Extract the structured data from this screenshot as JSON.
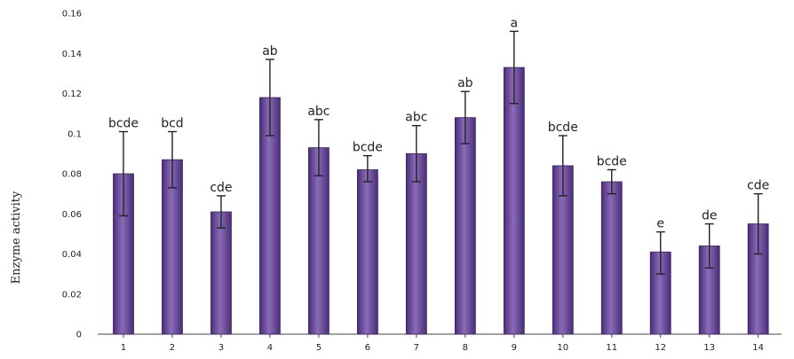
{
  "chart_data": {
    "type": "bar",
    "title": "",
    "xlabel": "",
    "ylabel": "Enzyme activity",
    "ylim": [
      0,
      0.16
    ],
    "yticks": [
      "0",
      "0.02",
      "0.04",
      "0.06",
      "0.08",
      "0.1",
      "0.12",
      "0.14",
      "0.16"
    ],
    "categories": [
      "1",
      "2",
      "3",
      "4",
      "5",
      "6",
      "7",
      "8",
      "9",
      "10",
      "11",
      "12",
      "13",
      "14"
    ],
    "values": [
      0.08,
      0.087,
      0.061,
      0.118,
      0.093,
      0.082,
      0.09,
      0.108,
      0.133,
      0.084,
      0.076,
      0.041,
      0.044,
      0.055
    ],
    "error_upper": [
      0.101,
      0.101,
      0.069,
      0.137,
      0.107,
      0.089,
      0.104,
      0.121,
      0.151,
      0.099,
      0.082,
      0.051,
      0.055,
      0.07
    ],
    "error_lower": [
      0.059,
      0.073,
      0.053,
      0.099,
      0.079,
      0.076,
      0.076,
      0.095,
      0.115,
      0.069,
      0.07,
      0.03,
      0.033,
      0.04
    ],
    "labels": [
      "bcde",
      "bcd",
      "cde",
      "ab",
      "abc",
      "bcde",
      "abc",
      "ab",
      "a",
      "bcde",
      "bcde",
      "e",
      "de",
      "cde"
    ],
    "bar_color": "#7b5aa6",
    "bar_edge_color": "#3c2460",
    "grid": false,
    "legend": false
  }
}
